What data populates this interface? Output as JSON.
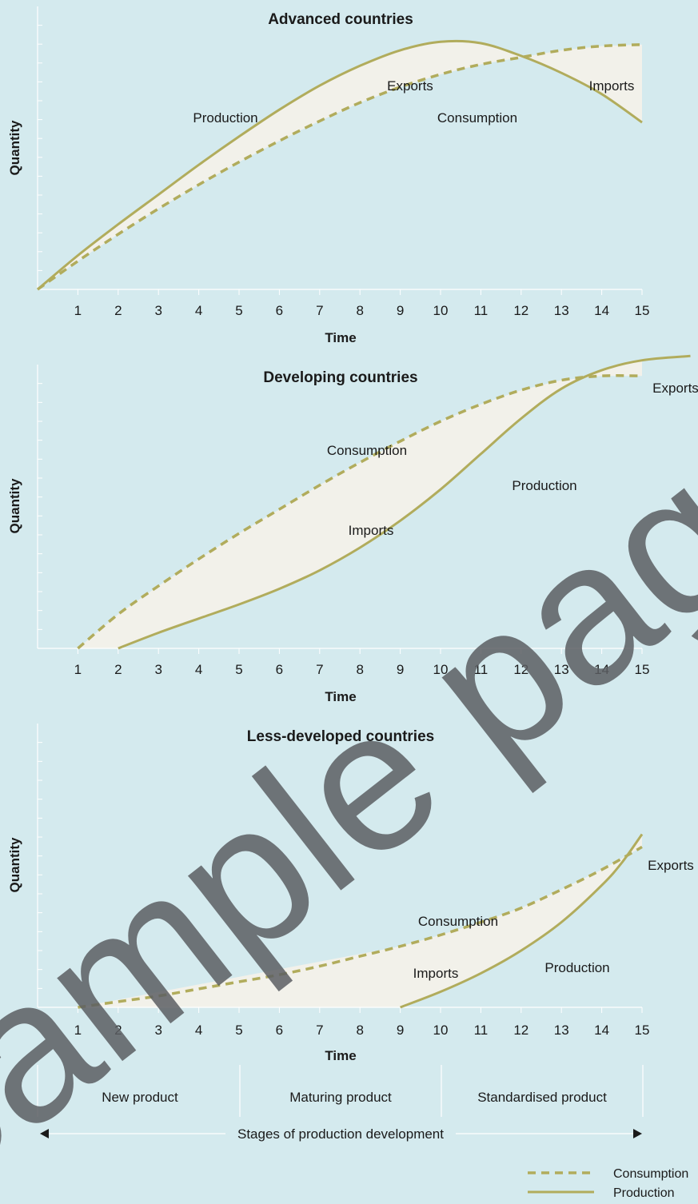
{
  "chart_data": [
    {
      "type": "line",
      "title": "Advanced countries",
      "xlabel": "Time",
      "ylabel": "Quantity",
      "x_ticks": [
        1,
        2,
        3,
        4,
        5,
        6,
        7,
        8,
        9,
        10,
        11,
        12,
        13,
        14,
        15
      ],
      "xlim": [
        0,
        15
      ],
      "ylim": [
        0,
        10
      ],
      "series": [
        {
          "name": "Production",
          "style": "solid",
          "points": [
            [
              0,
              0
            ],
            [
              1,
              1.2
            ],
            [
              2,
              2.3
            ],
            [
              3,
              3.35
            ],
            [
              4,
              4.4
            ],
            [
              5,
              5.4
            ],
            [
              6,
              6.35
            ],
            [
              7,
              7.2
            ],
            [
              8,
              7.9
            ],
            [
              9,
              8.45
            ],
            [
              10,
              8.75
            ],
            [
              11,
              8.7
            ],
            [
              12,
              8.25
            ],
            [
              13,
              7.65
            ],
            [
              14,
              6.9
            ],
            [
              15,
              5.9
            ]
          ]
        },
        {
          "name": "Consumption",
          "style": "dashed",
          "points": [
            [
              0,
              0
            ],
            [
              1,
              1.0
            ],
            [
              2,
              1.95
            ],
            [
              3,
              2.85
            ],
            [
              4,
              3.7
            ],
            [
              5,
              4.5
            ],
            [
              6,
              5.25
            ],
            [
              7,
              5.95
            ],
            [
              8,
              6.6
            ],
            [
              9,
              7.15
            ],
            [
              10,
              7.6
            ],
            [
              11,
              7.95
            ],
            [
              12,
              8.2
            ],
            [
              13,
              8.45
            ],
            [
              14,
              8.6
            ],
            [
              15,
              8.65
            ]
          ]
        }
      ],
      "annotations": [
        "Production",
        "Exports",
        "Consumption",
        "Imports"
      ]
    },
    {
      "type": "line",
      "title": "Developing countries",
      "xlabel": "Time",
      "ylabel": "Quantity",
      "x_ticks": [
        1,
        2,
        3,
        4,
        5,
        6,
        7,
        8,
        9,
        10,
        11,
        12,
        13,
        14,
        15
      ],
      "xlim": [
        0,
        15
      ],
      "ylim": [
        0,
        10
      ],
      "series": [
        {
          "name": "Consumption",
          "style": "dashed",
          "points": [
            [
              1,
              0
            ],
            [
              2,
              1.2
            ],
            [
              3,
              2.2
            ],
            [
              4,
              3.15
            ],
            [
              5,
              4.05
            ],
            [
              6,
              4.9
            ],
            [
              7,
              5.75
            ],
            [
              8,
              6.55
            ],
            [
              9,
              7.3
            ],
            [
              10,
              8.0
            ],
            [
              11,
              8.6
            ],
            [
              12,
              9.1
            ],
            [
              13,
              9.45
            ],
            [
              14,
              9.6
            ],
            [
              15,
              9.6
            ]
          ]
        },
        {
          "name": "Production",
          "style": "solid",
          "points": [
            [
              2,
              0
            ],
            [
              3,
              0.55
            ],
            [
              4,
              1.05
            ],
            [
              5,
              1.55
            ],
            [
              6,
              2.1
            ],
            [
              7,
              2.75
            ],
            [
              8,
              3.55
            ],
            [
              9,
              4.5
            ],
            [
              10,
              5.6
            ],
            [
              11,
              6.85
            ],
            [
              12,
              8.1
            ],
            [
              13,
              9.15
            ],
            [
              14,
              9.8
            ],
            [
              15,
              10.15
            ],
            [
              16.2,
              10.3
            ]
          ]
        }
      ],
      "annotations": [
        "Consumption",
        "Production",
        "Imports",
        "Exports"
      ]
    },
    {
      "type": "line",
      "title": "Less-developed countries",
      "xlabel": "Time",
      "ylabel": "Quantity",
      "x_ticks": [
        1,
        2,
        3,
        4,
        5,
        6,
        7,
        8,
        9,
        10,
        11,
        12,
        13,
        14,
        15
      ],
      "xlim": [
        0,
        15
      ],
      "ylim": [
        0,
        10
      ],
      "series": [
        {
          "name": "Consumption",
          "style": "dashed",
          "points": [
            [
              1,
              0
            ],
            [
              2,
              0.2
            ],
            [
              3,
              0.4
            ],
            [
              4,
              0.65
            ],
            [
              5,
              0.9
            ],
            [
              6,
              1.15
            ],
            [
              7,
              1.45
            ],
            [
              8,
              1.8
            ],
            [
              9,
              2.15
            ],
            [
              10,
              2.55
            ],
            [
              11,
              3.0
            ],
            [
              12,
              3.5
            ],
            [
              13,
              4.15
            ],
            [
              14,
              4.85
            ],
            [
              15,
              5.65
            ]
          ]
        },
        {
          "name": "Production",
          "style": "solid",
          "points": [
            [
              9,
              0
            ],
            [
              10,
              0.55
            ],
            [
              11,
              1.2
            ],
            [
              12,
              2.0
            ],
            [
              13,
              3.0
            ],
            [
              14,
              4.3
            ],
            [
              14.5,
              5.1
            ],
            [
              15,
              6.1
            ]
          ]
        }
      ],
      "annotations": [
        "Consumption",
        "Imports",
        "Production",
        "Exports"
      ]
    }
  ],
  "stages": {
    "labels": [
      "New product",
      "Maturing product",
      "Standardised product"
    ],
    "caption": "Stages of production development"
  },
  "legend": {
    "items": [
      {
        "label": "Consumption",
        "style": "dashed"
      },
      {
        "label": "Production",
        "style": "solid"
      }
    ]
  },
  "watermark": "Sample pages",
  "colors": {
    "background": "#d4eaee",
    "line": "#b1ac5c",
    "fill": "#f2f1ea",
    "axis": "#ffffff",
    "text": "#1a1a1a",
    "watermark": "#5c5f63"
  }
}
